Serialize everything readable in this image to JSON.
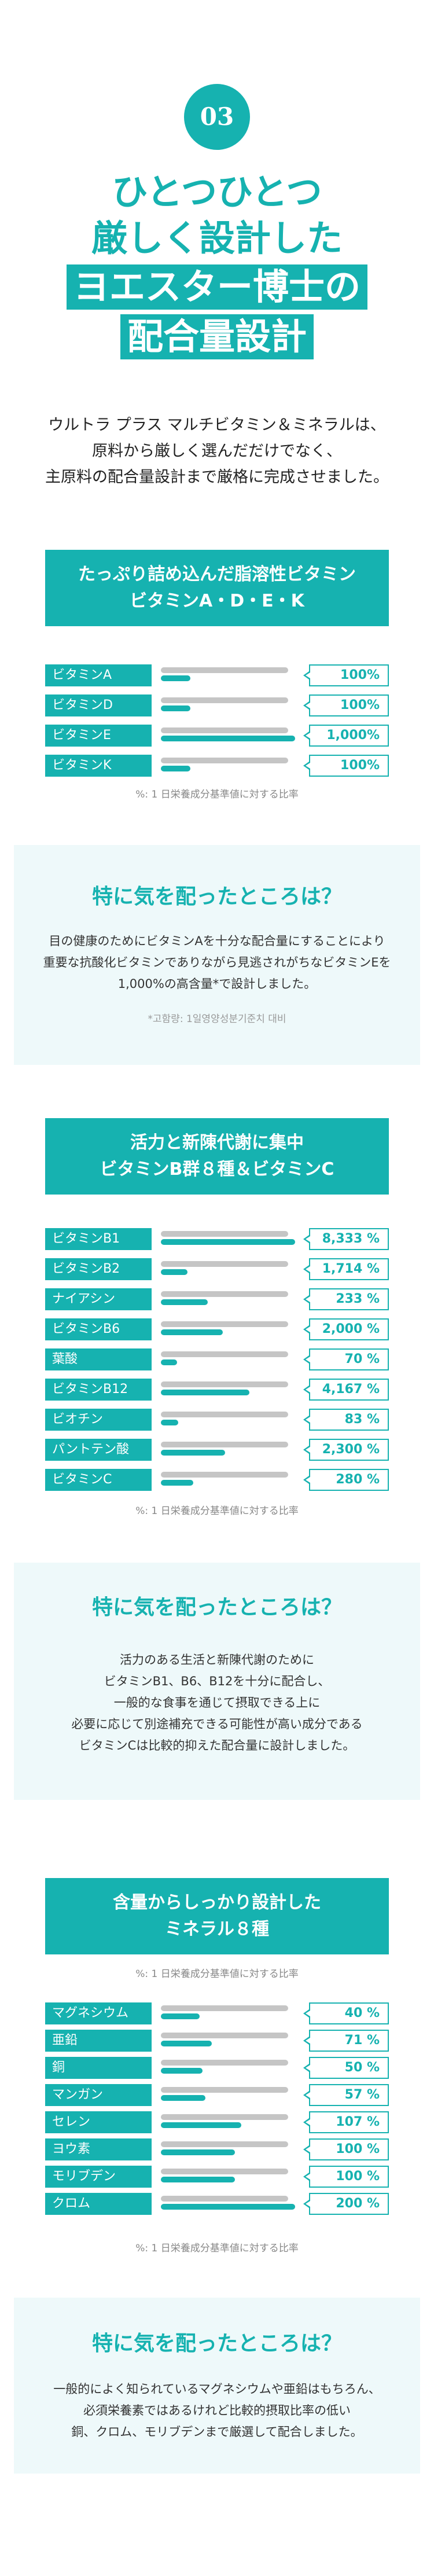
{
  "header": {
    "number": "03",
    "title_line1": "ひとつひとつ",
    "title_line2": "厳しく設計した",
    "title_line3": "ヨエスター博士の",
    "title_line4": "配合量設計"
  },
  "intro": {
    "line1": "ウルトラ プラス マルチビタミン＆ミネラルは、",
    "line2": "原料から厳しく選んだだけでなく、",
    "line3": "主原料の配合量設計まで厳格に完成させました。"
  },
  "section1": {
    "title_line1": "たっぷり詰め込んだ脂溶性ビタミン",
    "title_line2": "ビタミンA・D・E・K",
    "rows": [
      {
        "label": "ビタミンA",
        "value": "100%",
        "ratio": 0.22
      },
      {
        "label": "ビタミンD",
        "value": "100%",
        "ratio": 0.22
      },
      {
        "label": "ビタミンE",
        "value": "1,000%",
        "ratio": 1.0
      },
      {
        "label": "ビタミンK",
        "value": "100%",
        "ratio": 0.22
      }
    ],
    "note": "%: 1 日栄養成分基準値に対する比率"
  },
  "panel1": {
    "title": "特に気を配ったところは？",
    "line1": "目の健康のためにビタミンAを十分な配合量にすることにより",
    "line2": "重要な抗酸化ビタミンでありながら見逃されがちなビタミンEを",
    "line3": "1,000%の高含量*で設計しました。",
    "note": "*고함량: 1일영양성분기준치 대비"
  },
  "section2": {
    "title_line1": "活力と新陳代謝に集中",
    "title_line2": "ビタミンB群８種＆ビタミンC",
    "rows": [
      {
        "label": "ビタミンB1",
        "value": "8,333 %",
        "ratio": 1.0
      },
      {
        "label": "ビタミンB2",
        "value": "1,714 %",
        "ratio": 0.2
      },
      {
        "label": "ナイアシン",
        "value": "233 %",
        "ratio": 0.35
      },
      {
        "label": "ビタミンB6",
        "value": "2,000 %",
        "ratio": 0.46
      },
      {
        "label": "葉酸",
        "value": "70 %",
        "ratio": 0.12
      },
      {
        "label": "ビタミンB12",
        "value": "4,167 %",
        "ratio": 0.66
      },
      {
        "label": "ビオチン",
        "value": "83 %",
        "ratio": 0.13
      },
      {
        "label": "パントテン酸",
        "value": "2,300 %",
        "ratio": 0.48
      },
      {
        "label": "ビタミンC",
        "value": "280 %",
        "ratio": 0.24
      }
    ],
    "note": "%: 1 日栄養成分基準値に対する比率"
  },
  "panel2": {
    "title": "特に気を配ったところは？",
    "line1": "活力のある生活と新陳代謝のために",
    "line2": "ビタミンB1、B6、B12を十分に配合し、",
    "line3": "一般的な食事を通じて摂取できる上に",
    "line4": "必要に応じて別途補充できる可能性が高い成分である",
    "line5": "ビタミンCは比較的抑えた配合量に設計しました。"
  },
  "section3": {
    "title_line1": "含量からしっかり設計した",
    "title_line2": "ミネラル８種",
    "note_top": "%: 1 日栄養成分基準値に対する比率",
    "rows": [
      {
        "label": "マグネシウム",
        "value": "40 %",
        "ratio": 0.29
      },
      {
        "label": "亜鉛",
        "value": "71 %",
        "ratio": 0.38
      },
      {
        "label": "銅",
        "value": "50 %",
        "ratio": 0.31
      },
      {
        "label": "マンガン",
        "value": "57 %",
        "ratio": 0.33
      },
      {
        "label": "セレン",
        "value": "107 %",
        "ratio": 0.6
      },
      {
        "label": "ヨウ素",
        "value": "100 %",
        "ratio": 0.55
      },
      {
        "label": "モリブデン",
        "value": "100 %",
        "ratio": 0.55
      },
      {
        "label": "クロム",
        "value": "200 %",
        "ratio": 1.0
      }
    ],
    "note": "%: 1 日栄養成分基準値に対する比率"
  },
  "panel3": {
    "title": "特に気を配ったところは？",
    "line1": "一般的によく知られているマグネシウムや亜鉛はもちろん、",
    "line2": "必須栄養素ではあるけれど比較的摂取比率の低い",
    "line3": "銅、クロム、モリブデンまで厳選して配合しました。"
  },
  "colors": {
    "accent": "#16b2b0",
    "panel_bg": "#eef9fa",
    "track": "#c5c5c5"
  }
}
